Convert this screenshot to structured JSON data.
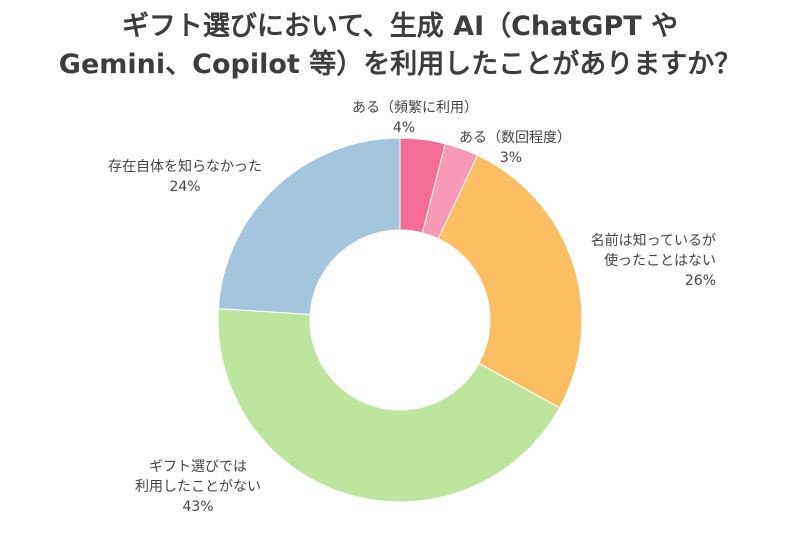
{
  "chart_data": {
    "type": "pie",
    "title_lines": [
      "ギフト選びにおいて、生成 AI（ChatGPT や",
      "Gemini、Copilot 等）を利用したことがありますか？"
    ],
    "slices": [
      {
        "name": "ある（頻繁に利用）",
        "label_lines": [
          "ある（頻繁に利用）"
        ],
        "value": 4,
        "value_label": "4%",
        "color": "#F56C97"
      },
      {
        "name": "ある（数回程度）",
        "label_lines": [
          "ある（数回程度）"
        ],
        "value": 3,
        "value_label": "3%",
        "color": "#F799B7"
      },
      {
        "name": "名前は知っているが使ったことはない",
        "label_lines": [
          "名前は知っているが",
          "使ったことはない"
        ],
        "value": 26,
        "value_label": "26%",
        "color": "#FDBD62"
      },
      {
        "name": "ギフト選びでは利用したことがない",
        "label_lines": [
          "ギフト選びでは",
          "利用したことがない"
        ],
        "value": 43,
        "value_label": "43%",
        "color": "#BEE59E"
      },
      {
        "name": "存在自体を知らなかった",
        "label_lines": [
          "存在自体を知らなかった"
        ],
        "value": 24,
        "value_label": "24%",
        "color": "#A3C5DE"
      }
    ],
    "donut": true,
    "start": "top",
    "direction": "clockwise"
  }
}
